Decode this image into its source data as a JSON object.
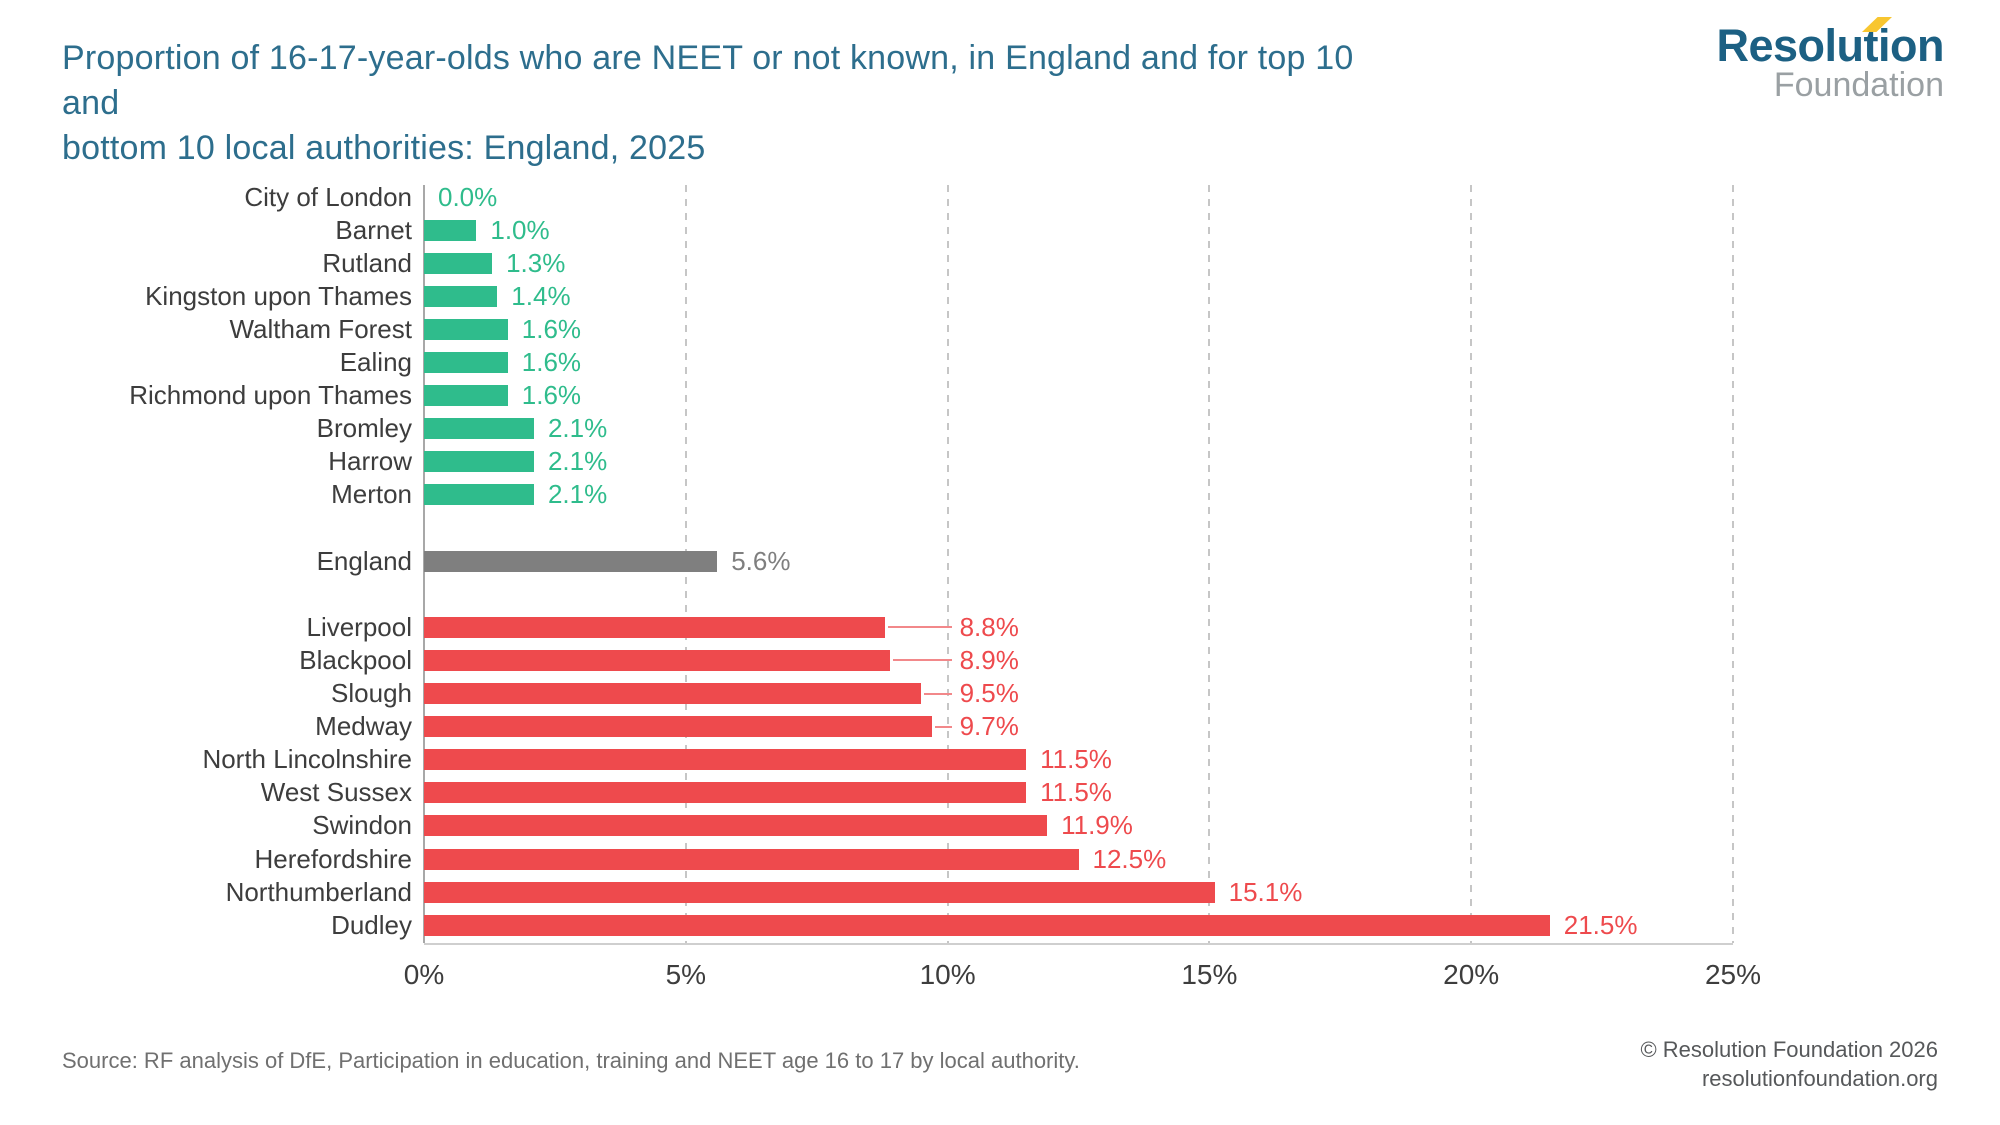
{
  "header": {
    "title_line1": "Proportion of 16-17-year-olds who are NEET or not known, in England and for top 10 and",
    "title_line2": "bottom 10 local authorities: England, 2025",
    "logo": {
      "line1": "Resolution",
      "line2": "Foundation"
    }
  },
  "chart_data": {
    "type": "bar",
    "orientation": "horizontal",
    "unit": "%",
    "xlim": [
      0,
      25
    ],
    "grid": "vertical-dashed",
    "x_ticks": [
      {
        "v": 0,
        "label": "0%"
      },
      {
        "v": 5,
        "label": "5%"
      },
      {
        "v": 10,
        "label": "10%"
      },
      {
        "v": 15,
        "label": "15%"
      },
      {
        "v": 20,
        "label": "20%"
      },
      {
        "v": 25,
        "label": "25%"
      }
    ],
    "groups": [
      {
        "id": "bottom10",
        "color_key": "green",
        "rows": [
          {
            "label": "City of London",
            "value": 0.0,
            "value_label": "0.0%"
          },
          {
            "label": "Barnet",
            "value": 1.0,
            "value_label": "1.0%"
          },
          {
            "label": "Rutland",
            "value": 1.3,
            "value_label": "1.3%"
          },
          {
            "label": "Kingston upon Thames",
            "value": 1.4,
            "value_label": "1.4%"
          },
          {
            "label": "Waltham Forest",
            "value": 1.6,
            "value_label": "1.6%"
          },
          {
            "label": "Ealing",
            "value": 1.6,
            "value_label": "1.6%"
          },
          {
            "label": "Richmond upon Thames",
            "value": 1.6,
            "value_label": "1.6%"
          },
          {
            "label": "Bromley",
            "value": 2.1,
            "value_label": "2.1%"
          },
          {
            "label": "Harrow",
            "value": 2.1,
            "value_label": "2.1%"
          },
          {
            "label": "Merton",
            "value": 2.1,
            "value_label": "2.1%"
          }
        ]
      },
      {
        "id": "england",
        "color_key": "gray",
        "rows": [
          {
            "label": "England",
            "value": 5.6,
            "value_label": "5.6%"
          }
        ]
      },
      {
        "id": "top10",
        "color_key": "red",
        "rows": [
          {
            "label": "Liverpool",
            "value": 8.8,
            "value_label": "8.8%",
            "callout": true
          },
          {
            "label": "Blackpool",
            "value": 8.9,
            "value_label": "8.9%",
            "callout": true
          },
          {
            "label": "Slough",
            "value": 9.5,
            "value_label": "9.5%",
            "callout": true
          },
          {
            "label": "Medway",
            "value": 9.7,
            "value_label": "9.7%",
            "callout": true
          },
          {
            "label": "North Lincolnshire",
            "value": 11.5,
            "value_label": "11.5%"
          },
          {
            "label": "West Sussex",
            "value": 11.5,
            "value_label": "11.5%"
          },
          {
            "label": "Swindon",
            "value": 11.9,
            "value_label": "11.9%"
          },
          {
            "label": "Herefordshire",
            "value": 12.5,
            "value_label": "12.5%"
          },
          {
            "label": "Northumberland",
            "value": 15.1,
            "value_label": "15.1%"
          },
          {
            "label": "Dudley",
            "value": 21.5,
            "value_label": "21.5%"
          }
        ]
      }
    ]
  },
  "colors": {
    "green": "#2fbc8c",
    "gray": "#7f7f7f",
    "red": "#ee4a4d",
    "title_blue": "#2d6e8d",
    "logo_blue": "#1c6083",
    "logo_gray": "#9aa0a3",
    "logo_yellow": "#f8c630",
    "leader_red": "#f2888a"
  },
  "source": "Source: RF analysis of DfE, Participation in education, training and NEET age 16 to 17 by local authority.",
  "footer": {
    "copyright": "© Resolution Foundation 2026",
    "website": "resolutionfoundation.org"
  }
}
